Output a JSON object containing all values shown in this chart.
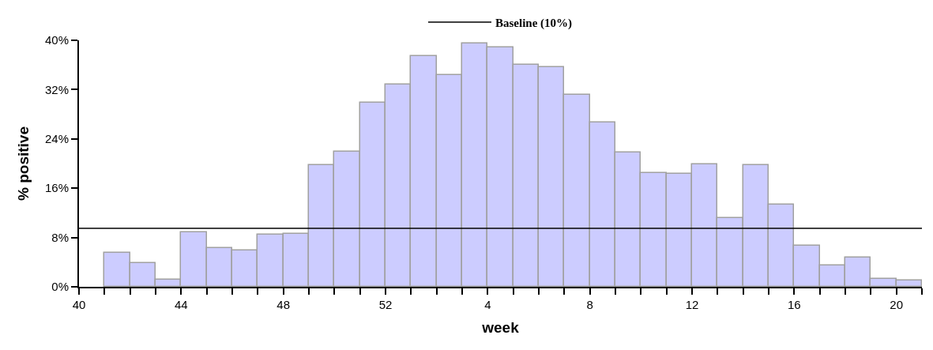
{
  "chart_data": {
    "type": "bar",
    "xlabel": "week",
    "ylabel": "% positive",
    "categories": [
      "40",
      null,
      null,
      null,
      "44",
      null,
      null,
      null,
      "48",
      null,
      null,
      null,
      "52",
      null,
      null,
      null,
      "4",
      null,
      null,
      null,
      "8",
      null,
      null,
      null,
      "12",
      null,
      null,
      null,
      "16",
      null,
      null,
      null,
      "20"
    ],
    "values": [
      null,
      5.5,
      3.9,
      1.2,
      8.9,
      6.3,
      5.9,
      8.5,
      8.6,
      19.7,
      21.9,
      29.9,
      32.8,
      37.4,
      34.3,
      39.5,
      38.8,
      36.0,
      35.7,
      31.2,
      26.7,
      21.8,
      18.5,
      18.3,
      19.9,
      11.1,
      19.7,
      13.3,
      6.7,
      3.4,
      4.8,
      1.3,
      1.0
    ],
    "color": "#ccccff",
    "ylim": [
      0,
      40
    ],
    "yticks": [
      {
        "value": 0,
        "label": "0%"
      },
      {
        "value": 8,
        "label": "8%"
      },
      {
        "value": 16,
        "label": "16%"
      },
      {
        "value": 24,
        "label": "24%"
      },
      {
        "value": 32,
        "label": "32%"
      },
      {
        "value": 40,
        "label": "40%"
      }
    ],
    "ref_lines": [
      {
        "axis": "y",
        "value": 9.5,
        "label": "Baseline (10%)",
        "color": "#000000"
      }
    ],
    "legend": "top"
  }
}
